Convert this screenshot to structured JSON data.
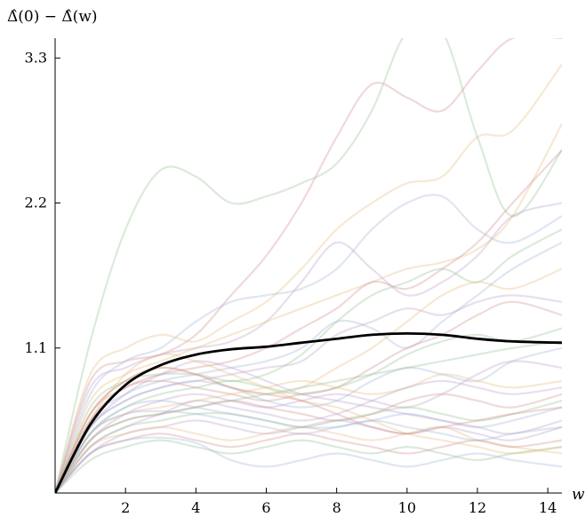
{
  "chart_data": {
    "type": "line",
    "xlabel": "w",
    "ylabel": "Δ̂(0) − Δ̂(w)",
    "xlim": [
      0,
      14.4
    ],
    "ylim": [
      0,
      3.45
    ],
    "xticks": [
      2,
      4,
      6,
      8,
      10,
      12,
      14
    ],
    "xtick_labels": [
      "2",
      "4",
      "6",
      "8",
      "10",
      "12",
      "14"
    ],
    "yticks": [
      1.1,
      2.2,
      3.3
    ],
    "ytick_labels": [
      "1.1",
      "2.2",
      "3.3"
    ],
    "x": [
      0,
      1,
      2,
      3,
      4,
      5,
      6,
      7,
      8,
      9,
      10,
      11,
      12,
      13,
      14.4
    ],
    "mean_series": {
      "color": "#000000",
      "values": [
        0,
        0.52,
        0.82,
        0.97,
        1.05,
        1.09,
        1.11,
        1.14,
        1.17,
        1.2,
        1.21,
        1.2,
        1.17,
        1.15,
        1.14
      ]
    },
    "series": [
      {
        "color": "#8fbf8f",
        "values": [
          0,
          1.15,
          2.0,
          2.45,
          2.4,
          2.2,
          2.25,
          2.35,
          2.5,
          2.9,
          3.5,
          3.5,
          2.7,
          2.1,
          2.6
        ]
      },
      {
        "color": "#d08a8a",
        "values": [
          0,
          0.85,
          1.0,
          1.05,
          1.2,
          1.5,
          1.8,
          2.2,
          2.7,
          3.1,
          3.0,
          2.9,
          3.2,
          3.45,
          3.45
        ]
      },
      {
        "color": "#e6b87a",
        "values": [
          0,
          0.9,
          1.1,
          1.2,
          1.15,
          1.3,
          1.45,
          1.7,
          2.0,
          2.2,
          2.35,
          2.4,
          2.7,
          2.75,
          3.25
        ]
      },
      {
        "color": "#9ab0d8",
        "values": [
          0,
          0.75,
          1.0,
          1.1,
          1.3,
          1.45,
          1.5,
          1.55,
          1.7,
          2.0,
          2.2,
          2.25,
          2.0,
          1.9,
          2.1
        ]
      },
      {
        "color": "#b89ac8",
        "values": [
          0,
          0.8,
          0.95,
          1.05,
          1.1,
          1.15,
          1.3,
          1.6,
          1.9,
          1.7,
          1.5,
          1.6,
          1.8,
          2.1,
          2.2
        ]
      },
      {
        "color": "#e6b87a",
        "values": [
          0,
          0.7,
          0.9,
          1.0,
          1.1,
          1.2,
          1.3,
          1.4,
          1.5,
          1.6,
          1.7,
          1.75,
          1.85,
          2.1,
          2.8
        ]
      },
      {
        "color": "#d08a8a",
        "values": [
          0,
          0.6,
          0.8,
          0.9,
          0.95,
          1.0,
          1.1,
          1.25,
          1.4,
          1.6,
          1.55,
          1.7,
          1.9,
          2.2,
          2.6
        ]
      },
      {
        "color": "#8fbf8f",
        "values": [
          0,
          0.65,
          0.85,
          0.9,
          0.9,
          0.85,
          0.9,
          1.05,
          1.3,
          1.5,
          1.6,
          1.7,
          1.6,
          1.8,
          2.0
        ]
      },
      {
        "color": "#9ab0d8",
        "values": [
          0,
          0.55,
          0.75,
          0.85,
          0.9,
          0.95,
          1.0,
          1.1,
          1.3,
          1.25,
          1.1,
          1.3,
          1.5,
          1.7,
          1.9
        ]
      },
      {
        "color": "#b89ac8",
        "values": [
          0,
          0.5,
          0.7,
          0.8,
          0.85,
          0.9,
          0.95,
          1.0,
          1.2,
          1.3,
          1.4,
          1.35,
          1.45,
          1.5,
          1.45
        ]
      },
      {
        "color": "#e6b87a",
        "values": [
          0,
          0.6,
          0.85,
          0.95,
          0.9,
          0.8,
          0.75,
          0.8,
          0.95,
          1.1,
          1.3,
          1.5,
          1.6,
          1.55,
          1.7
        ]
      },
      {
        "color": "#d08a8a",
        "values": [
          0,
          0.55,
          0.8,
          0.85,
          0.8,
          0.75,
          0.7,
          0.75,
          0.8,
          0.95,
          1.1,
          1.2,
          1.35,
          1.45,
          1.35
        ]
      },
      {
        "color": "#8fbf8f",
        "values": [
          0,
          0.45,
          0.65,
          0.75,
          0.8,
          0.85,
          0.8,
          0.75,
          0.8,
          0.9,
          1.05,
          1.15,
          1.2,
          1.15,
          1.25
        ]
      },
      {
        "color": "#9ab0d8",
        "values": [
          0,
          0.5,
          0.7,
          0.8,
          0.85,
          0.8,
          0.7,
          0.65,
          0.7,
          0.85,
          0.95,
          0.9,
          0.85,
          1.0,
          1.1
        ]
      },
      {
        "color": "#b89ac8",
        "values": [
          0,
          0.4,
          0.6,
          0.7,
          0.75,
          0.7,
          0.65,
          0.7,
          0.75,
          0.7,
          0.65,
          0.75,
          0.9,
          1.0,
          0.95
        ]
      },
      {
        "color": "#e6b87a",
        "values": [
          0,
          0.45,
          0.6,
          0.65,
          0.7,
          0.75,
          0.8,
          0.85,
          0.8,
          0.75,
          0.8,
          0.9,
          0.85,
          0.8,
          0.85
        ]
      },
      {
        "color": "#d08a8a",
        "values": [
          0,
          0.4,
          0.55,
          0.6,
          0.65,
          0.7,
          0.65,
          0.6,
          0.55,
          0.6,
          0.7,
          0.75,
          0.7,
          0.65,
          0.75
        ]
      },
      {
        "color": "#8fbf8f",
        "values": [
          0,
          0.35,
          0.5,
          0.55,
          0.6,
          0.6,
          0.55,
          0.5,
          0.55,
          0.6,
          0.65,
          0.6,
          0.55,
          0.6,
          0.7
        ]
      },
      {
        "color": "#9ab0d8",
        "values": [
          0,
          0.45,
          0.6,
          0.62,
          0.6,
          0.55,
          0.5,
          0.45,
          0.5,
          0.55,
          0.6,
          0.55,
          0.5,
          0.55,
          0.65
        ]
      },
      {
        "color": "#b89ac8",
        "values": [
          0,
          0.3,
          0.45,
          0.5,
          0.55,
          0.5,
          0.45,
          0.5,
          0.55,
          0.5,
          0.45,
          0.5,
          0.45,
          0.4,
          0.5
        ]
      },
      {
        "color": "#e6b87a",
        "values": [
          0,
          0.35,
          0.45,
          0.5,
          0.45,
          0.4,
          0.45,
          0.5,
          0.45,
          0.4,
          0.45,
          0.5,
          0.4,
          0.35,
          0.3
        ]
      },
      {
        "color": "#d08a8a",
        "values": [
          0,
          0.3,
          0.4,
          0.45,
          0.4,
          0.35,
          0.4,
          0.45,
          0.4,
          0.35,
          0.3,
          0.35,
          0.4,
          0.35,
          0.4
        ]
      },
      {
        "color": "#8fbf8f",
        "values": [
          0,
          0.25,
          0.35,
          0.4,
          0.35,
          0.3,
          0.35,
          0.4,
          0.35,
          0.3,
          0.35,
          0.3,
          0.25,
          0.3,
          0.35
        ]
      },
      {
        "color": "#9ab0d8",
        "values": [
          0,
          0.3,
          0.4,
          0.42,
          0.38,
          0.25,
          0.2,
          0.25,
          0.3,
          0.25,
          0.2,
          0.25,
          0.3,
          0.25,
          0.2
        ]
      },
      {
        "color": "#b89ac8",
        "values": [
          0,
          0.5,
          0.75,
          0.9,
          1.0,
          0.95,
          0.85,
          0.75,
          0.7,
          0.65,
          0.6,
          0.55,
          0.5,
          0.45,
          0.55
        ]
      },
      {
        "color": "#e6b87a",
        "values": [
          0,
          0.55,
          0.9,
          1.05,
          1.0,
          0.9,
          0.8,
          0.7,
          0.65,
          0.55,
          0.45,
          0.4,
          0.35,
          0.3,
          0.35
        ]
      },
      {
        "color": "#d08a8a",
        "values": [
          0,
          0.6,
          0.85,
          0.95,
          0.9,
          0.8,
          0.75,
          0.7,
          0.6,
          0.5,
          0.45,
          0.5,
          0.55,
          0.6,
          0.65
        ]
      },
      {
        "color": "#9ab0d8",
        "values": [
          0,
          0.45,
          0.65,
          0.7,
          0.65,
          0.6,
          0.55,
          0.5,
          0.5,
          0.55,
          0.5,
          0.45,
          0.4,
          0.45,
          0.5
        ]
      },
      {
        "color": "#8fbf8f",
        "values": [
          0,
          0.4,
          0.55,
          0.6,
          0.65,
          0.7,
          0.75,
          0.8,
          0.85,
          0.9,
          0.95,
          1.0,
          1.05,
          1.1,
          1.15
        ]
      },
      {
        "color": "#b89ac8",
        "values": [
          0,
          0.35,
          0.5,
          0.6,
          0.7,
          0.65,
          0.6,
          0.55,
          0.6,
          0.7,
          0.8,
          0.85,
          0.8,
          0.75,
          0.8
        ]
      }
    ]
  }
}
